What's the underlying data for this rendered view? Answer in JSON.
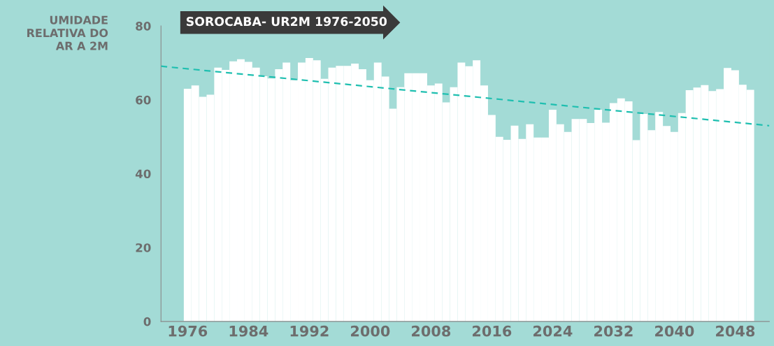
{
  "chart_data": {
    "type": "bar",
    "title": "SOROCABA- UR2M 1976-2050",
    "ylabel": "UMIDADE\nRELATIVA DO\nAR A 2M",
    "x": [
      1976,
      1977,
      1978,
      1979,
      1980,
      1981,
      1982,
      1983,
      1984,
      1985,
      1986,
      1987,
      1988,
      1989,
      1990,
      1991,
      1992,
      1993,
      1994,
      1995,
      1996,
      1997,
      1998,
      1999,
      2000,
      2001,
      2002,
      2003,
      2004,
      2005,
      2006,
      2007,
      2008,
      2009,
      2010,
      2011,
      2012,
      2013,
      2014,
      2015,
      2016,
      2017,
      2018,
      2019,
      2020,
      2021,
      2022,
      2023,
      2024,
      2025,
      2026,
      2027,
      2028,
      2029,
      2030,
      2031,
      2032,
      2033,
      2034,
      2035,
      2036,
      2037,
      2038,
      2039,
      2040,
      2041,
      2042,
      2043,
      2044,
      2045,
      2046,
      2047,
      2048,
      2049,
      2050
    ],
    "series": [
      {
        "color": "#ffffff",
        "values": [
          63.0,
          63.9,
          60.8,
          61.4,
          68.7,
          68.1,
          70.4,
          71.0,
          70.3,
          68.7,
          66.4,
          65.8,
          68.3,
          70.1,
          65.3,
          70.1,
          71.3,
          70.7,
          65.7,
          68.7,
          69.2,
          69.2,
          69.8,
          68.3,
          65.3,
          70.1,
          66.3,
          57.6,
          63.4,
          67.2,
          67.2,
          67.2,
          63.9,
          64.4,
          59.3,
          63.4,
          70.1,
          69.1,
          70.7,
          63.9,
          55.9,
          50.0,
          49.2,
          53.0,
          49.4,
          53.4,
          49.8,
          49.8,
          57.3,
          53.4,
          51.3,
          54.8,
          54.8,
          53.7,
          57.3,
          53.8,
          59.1,
          60.4,
          59.6,
          49.1,
          56.2,
          51.8,
          56.7,
          52.9,
          51.3,
          56.4,
          62.6,
          63.3,
          64.0,
          62.4,
          62.9,
          68.6,
          68.0,
          64.1,
          62.7
        ]
      },
      {
        "type": "line",
        "color": "#1fbfb0",
        "line_style": "dashed",
        "x": [
          1972.5,
          2052.5
        ],
        "values": [
          69.1,
          53.0
        ]
      }
    ],
    "xlim": [
      1972.5,
      2052.5
    ],
    "xticks": [
      1976,
      1984,
      1992,
      2000,
      2008,
      2016,
      2024,
      2032,
      2040,
      2048
    ],
    "ylim": [
      0,
      80
    ],
    "yticks": [
      0,
      20,
      40,
      60,
      80
    ],
    "grid": false,
    "legend": false
  }
}
